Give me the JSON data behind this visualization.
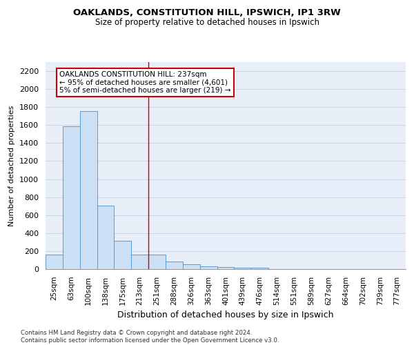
{
  "title1": "OAKLANDS, CONSTITUTION HILL, IPSWICH, IP1 3RW",
  "title2": "Size of property relative to detached houses in Ipswich",
  "xlabel": "Distribution of detached houses by size in Ipswich",
  "ylabel": "Number of detached properties",
  "categories": [
    "25sqm",
    "63sqm",
    "100sqm",
    "138sqm",
    "175sqm",
    "213sqm",
    "251sqm",
    "288sqm",
    "326sqm",
    "363sqm",
    "401sqm",
    "439sqm",
    "476sqm",
    "514sqm",
    "551sqm",
    "589sqm",
    "627sqm",
    "664sqm",
    "702sqm",
    "739sqm",
    "777sqm"
  ],
  "values": [
    160,
    1590,
    1755,
    705,
    315,
    160,
    160,
    88,
    50,
    30,
    22,
    18,
    18,
    0,
    0,
    0,
    0,
    0,
    0,
    0,
    0
  ],
  "bar_color": "#cce0f5",
  "bar_edge_color": "#5b9bd5",
  "annotation_title": "OAKLANDS CONSTITUTION HILL: 237sqm",
  "annotation_line1": "← 95% of detached houses are smaller (4,601)",
  "annotation_line2": "5% of semi-detached houses are larger (219) →",
  "annotation_box_color": "#cc0000",
  "vline_x": 6.0,
  "vline_color": "#cc0000",
  "ylim": [
    0,
    2300
  ],
  "yticks": [
    0,
    200,
    400,
    600,
    800,
    1000,
    1200,
    1400,
    1600,
    1800,
    2000,
    2200
  ],
  "footer_line1": "Contains HM Land Registry data © Crown copyright and database right 2024.",
  "footer_line2": "Contains public sector information licensed under the Open Government Licence v3.0.",
  "grid_color": "#c8d4e3",
  "background_color": "#e8eef8",
  "title1_fontsize": 9.5,
  "title2_fontsize": 8.5,
  "ylabel_fontsize": 8,
  "xlabel_fontsize": 9,
  "ytick_fontsize": 8,
  "xtick_fontsize": 7.5
}
